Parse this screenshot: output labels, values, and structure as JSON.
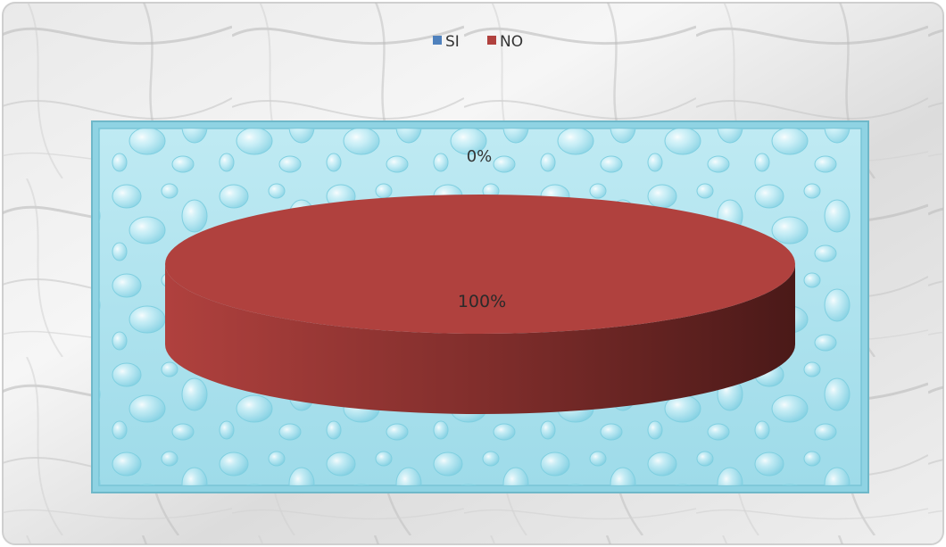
{
  "chart_data": {
    "type": "pie",
    "style": "3d",
    "title": "",
    "legend_position": "top",
    "categories": [
      "SI",
      "NO"
    ],
    "values": [
      0,
      100
    ],
    "percent_labels": [
      "0%",
      "100%"
    ],
    "colors": {
      "SI": "#4f81bd",
      "NO": "#b0413e"
    }
  }
}
